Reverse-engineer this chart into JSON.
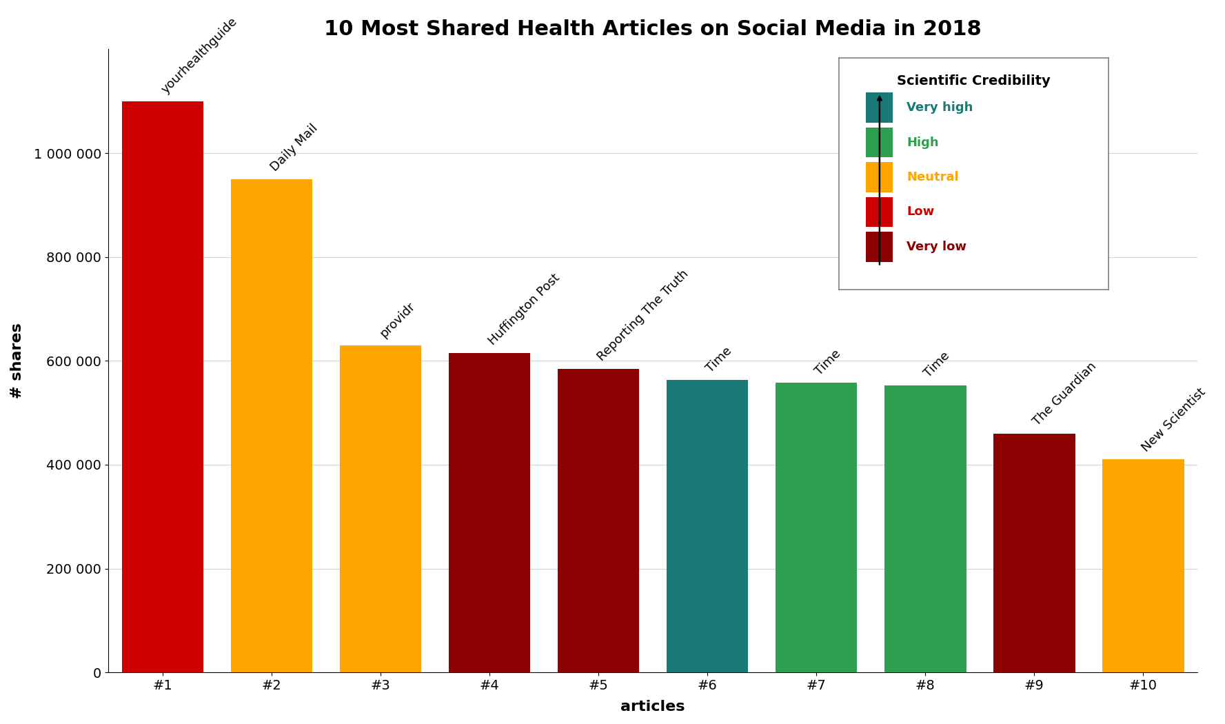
{
  "title": "10 Most Shared Health Articles on Social Media in 2018",
  "xlabel": "articles",
  "ylabel": "# shares",
  "categories": [
    "#1",
    "#2",
    "#3",
    "#4",
    "#5",
    "#6",
    "#7",
    "#8",
    "#9",
    "#10"
  ],
  "values": [
    1100000,
    950000,
    630000,
    615000,
    585000,
    563000,
    558000,
    553000,
    460000,
    410000
  ],
  "bar_colors": [
    "#CC0000",
    "#FFA500",
    "#FFA500",
    "#8B0000",
    "#8B0000",
    "#1A7A78",
    "#2E9E4F",
    "#2E9E4F",
    "#8B0000",
    "#FFA500"
  ],
  "bar_labels": [
    "yourhealthguide",
    "Daily Mail",
    "providr",
    "Huffington Post",
    "Reporting The Truth",
    "Time",
    "Time",
    "Time",
    "The Guardian",
    "New Scientist"
  ],
  "credibility_colors": [
    "#1A7A78",
    "#2E9E4F",
    "#FFA500",
    "#CC0000",
    "#8B0000"
  ],
  "credibility_labels": [
    "Very high",
    "High",
    "Neutral",
    "Low",
    "Very low"
  ],
  "ylim": [
    0,
    1200000
  ],
  "yticks": [
    0,
    200000,
    400000,
    600000,
    800000,
    1000000
  ],
  "background_color": "#FFFFFF",
  "title_fontsize": 22,
  "axis_label_fontsize": 16,
  "tick_fontsize": 14,
  "bar_label_fontsize": 13
}
